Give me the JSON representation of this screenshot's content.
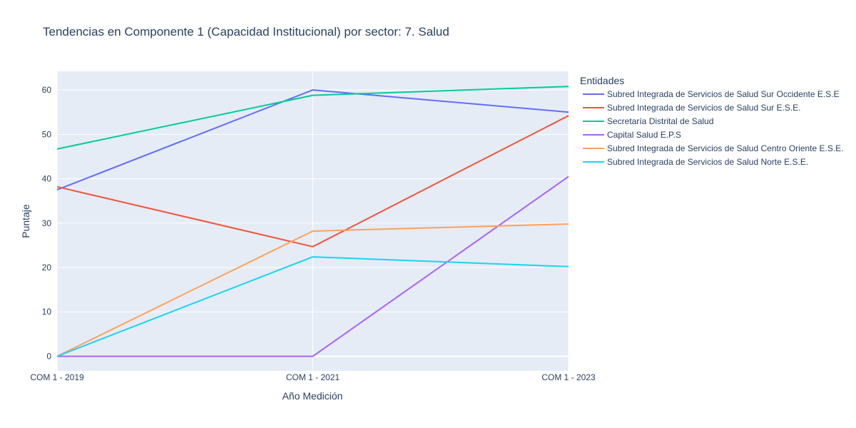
{
  "chart_data": {
    "type": "line",
    "title": "Tendencias en Componente 1 (Capacidad Institucional) por sector: 7. Salud",
    "xlabel": "Año Medición",
    "ylabel": "Puntaje",
    "categories": [
      "COM 1 - 2019",
      "COM 1 - 2021",
      "COM 1 - 2023"
    ],
    "ylim": [
      -3.3,
      64.2
    ],
    "yticks": [
      0,
      10,
      20,
      30,
      40,
      50,
      60
    ],
    "grid": true,
    "legend": {
      "title": "Entidades",
      "placement": "right"
    },
    "series": [
      {
        "name": "Subred Integrada de Servicios de Salud Sur Occidente E.S.E",
        "color": "#636efa",
        "values": [
          37.5,
          60.0,
          55.0
        ]
      },
      {
        "name": "Subred Integrada de Servicios de Salud Sur E.S.E.",
        "color": "#ef553b",
        "values": [
          38.2,
          24.7,
          54.2
        ]
      },
      {
        "name": "Secretaría Distrital de Salud",
        "color": "#00cc96",
        "values": [
          46.7,
          58.8,
          60.8
        ]
      },
      {
        "name": "Capital Salud E.P.S",
        "color": "#ab63fa",
        "values": [
          0,
          0,
          40.5
        ]
      },
      {
        "name": "Subred Integrada de Servicios de Salud Centro Oriente E.S.E.",
        "color": "#ffa15a",
        "values": [
          0,
          28.2,
          29.8
        ]
      },
      {
        "name": "Subred Integrada de Servicios de Salud Norte  E.S.E.",
        "color": "#19d3f3",
        "values": [
          0,
          22.4,
          20.2
        ]
      }
    ]
  }
}
